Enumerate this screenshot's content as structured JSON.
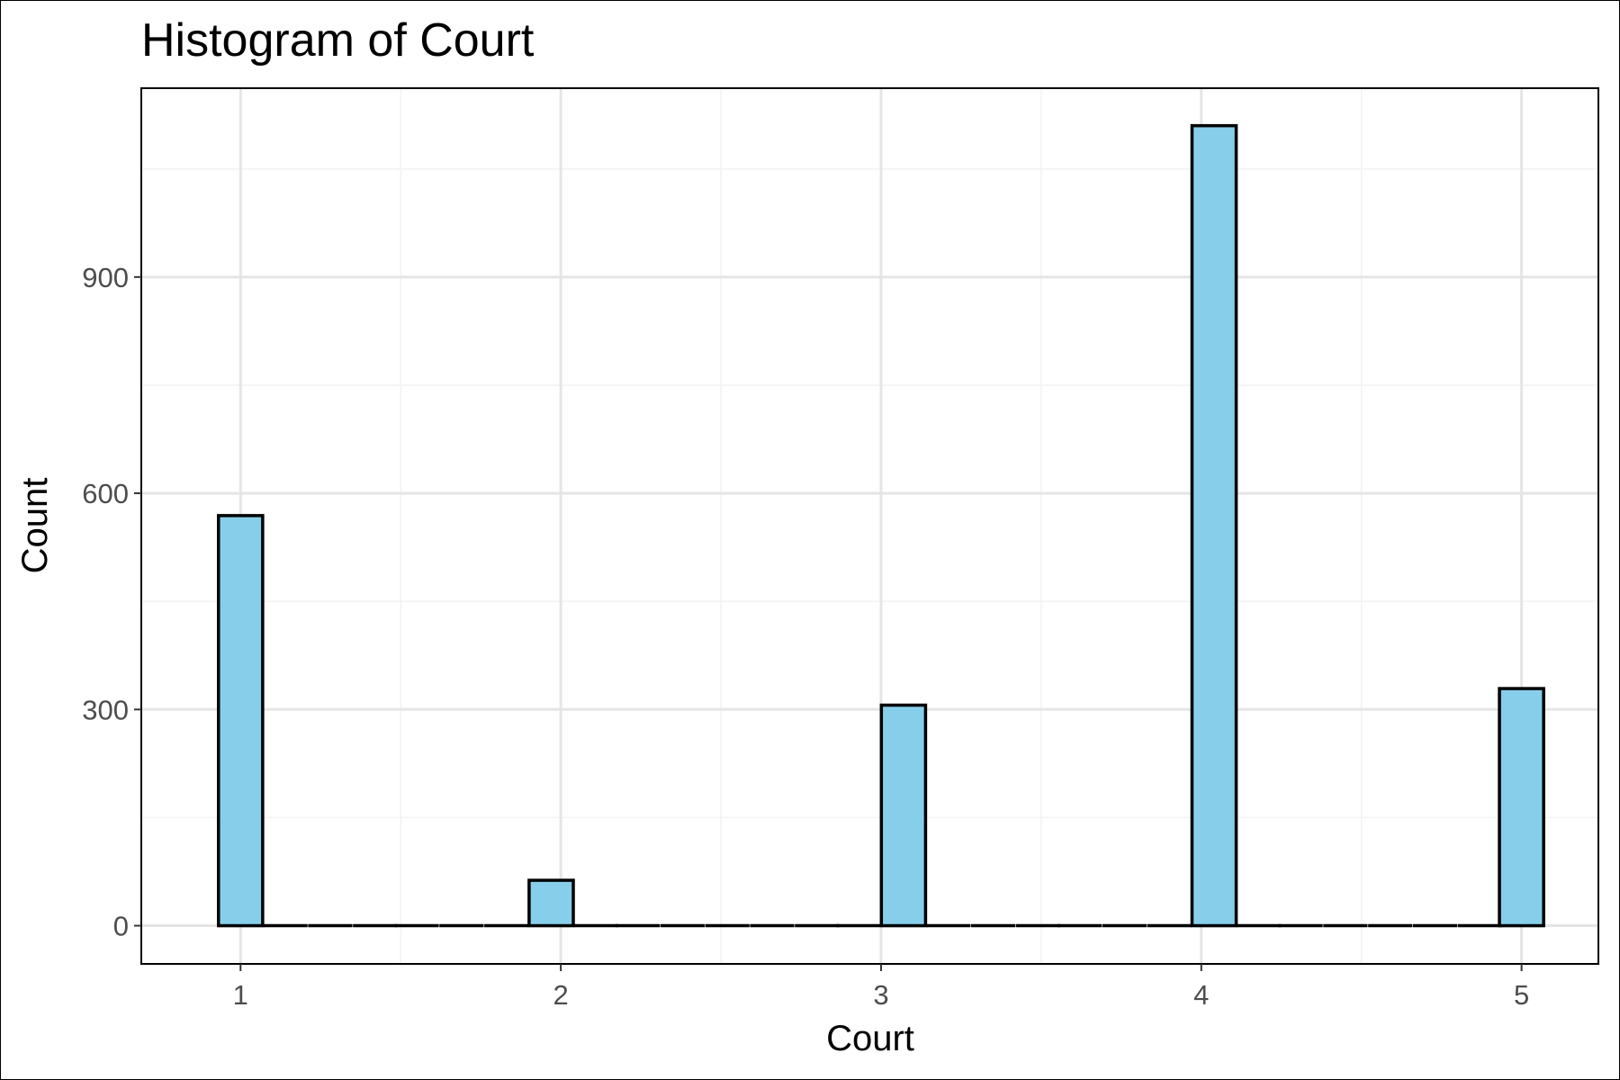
{
  "chart_data": {
    "type": "bar",
    "title": "Histogram of Court",
    "xlabel": "Court",
    "ylabel": "Count",
    "x_ticks": [
      "1",
      "2",
      "3",
      "4",
      "5"
    ],
    "y_ticks": [
      "0",
      "300",
      "600",
      "900"
    ],
    "xlim": [
      0.69,
      5.24
    ],
    "ylim": [
      -53,
      1162
    ],
    "grid": true,
    "legend": "none",
    "bin_width": 0.138,
    "bins": [
      {
        "x": 1.0,
        "value": 569
      },
      {
        "x": 1.14,
        "value": 0
      },
      {
        "x": 1.28,
        "value": 0
      },
      {
        "x": 1.42,
        "value": 0
      },
      {
        "x": 1.55,
        "value": 0
      },
      {
        "x": 1.69,
        "value": 0
      },
      {
        "x": 1.83,
        "value": 0
      },
      {
        "x": 1.97,
        "value": 63
      },
      {
        "x": 2.11,
        "value": 0
      },
      {
        "x": 2.24,
        "value": 0
      },
      {
        "x": 2.38,
        "value": 0
      },
      {
        "x": 2.52,
        "value": 0
      },
      {
        "x": 2.66,
        "value": 0
      },
      {
        "x": 2.8,
        "value": 0
      },
      {
        "x": 2.93,
        "value": 0
      },
      {
        "x": 3.07,
        "value": 306
      },
      {
        "x": 3.21,
        "value": 0
      },
      {
        "x": 3.35,
        "value": 0
      },
      {
        "x": 3.49,
        "value": 0
      },
      {
        "x": 3.62,
        "value": 0
      },
      {
        "x": 3.76,
        "value": 0
      },
      {
        "x": 3.9,
        "value": 0
      },
      {
        "x": 4.04,
        "value": 1110
      },
      {
        "x": 4.18,
        "value": 0
      },
      {
        "x": 4.31,
        "value": 0
      },
      {
        "x": 4.45,
        "value": 0
      },
      {
        "x": 4.59,
        "value": 0
      },
      {
        "x": 4.73,
        "value": 0
      },
      {
        "x": 4.87,
        "value": 0
      },
      {
        "x": 5.0,
        "value": 329
      }
    ],
    "colors": {
      "bar_fill": "#87ceeb",
      "bar_stroke": "#000000",
      "grid_major": "#e5e5e5",
      "grid_minor": "#f2f2f2",
      "panel_border": "#000000"
    }
  }
}
